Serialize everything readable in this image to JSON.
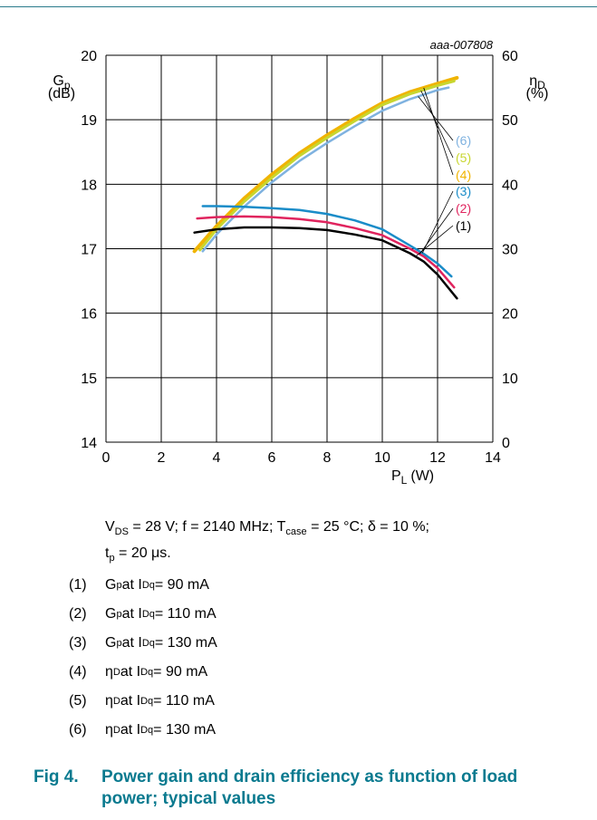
{
  "chart_data": {
    "type": "line",
    "id_label": "aaa-007808",
    "xlabel": "P",
    "xlabel_sub": "L",
    "xlabel_unit": "(W)",
    "ylabel_left": "G",
    "ylabel_left_sub": "p",
    "ylabel_left_unit": "(dB)",
    "ylabel_right": "η",
    "ylabel_right_sub": "D",
    "ylabel_right_unit": "(%)",
    "xlim": [
      0,
      14
    ],
    "ylim_left": [
      14,
      20
    ],
    "ylim_right": [
      0,
      60
    ],
    "x_ticks": [
      "0",
      "2",
      "4",
      "6",
      "8",
      "10",
      "12",
      "14"
    ],
    "y_left_ticks": [
      "14",
      "15",
      "16",
      "17",
      "18",
      "19",
      "20"
    ],
    "y_right_ticks": [
      "0",
      "10",
      "20",
      "30",
      "40",
      "50",
      "60"
    ],
    "grid": true,
    "series": [
      {
        "name": "(1)",
        "axis": "left",
        "color": "#000000",
        "x": [
          3.2,
          4,
          5,
          6,
          7,
          8,
          9,
          10,
          11,
          11.5,
          12,
          12.7
        ],
        "y": [
          17.25,
          17.3,
          17.33,
          17.33,
          17.32,
          17.29,
          17.22,
          17.13,
          16.93,
          16.8,
          16.6,
          16.23
        ]
      },
      {
        "name": "(2)",
        "axis": "left",
        "color": "#e0245e",
        "x": [
          3.3,
          4,
          5,
          6,
          7,
          8,
          9,
          10,
          11,
          11.5,
          12,
          12.6
        ],
        "y": [
          17.47,
          17.49,
          17.5,
          17.49,
          17.46,
          17.41,
          17.32,
          17.21,
          17.0,
          16.88,
          16.7,
          16.4
        ]
      },
      {
        "name": "(3)",
        "axis": "left",
        "color": "#1a8cc8",
        "x": [
          3.5,
          4,
          5,
          6,
          7,
          8,
          9,
          10,
          11,
          11.5,
          12,
          12.5
        ],
        "y": [
          17.66,
          17.66,
          17.65,
          17.63,
          17.6,
          17.54,
          17.44,
          17.3,
          17.05,
          16.92,
          16.77,
          16.57
        ]
      },
      {
        "name": "(4)",
        "axis": "right",
        "color": "#f0b400",
        "x": [
          3.2,
          4,
          5,
          6,
          7,
          8,
          9,
          10,
          11,
          12,
          12.7
        ],
        "y": [
          29.6,
          33.5,
          37.8,
          41.5,
          44.8,
          47.6,
          50.2,
          52.6,
          54.3,
          55.6,
          56.5
        ]
      },
      {
        "name": "(5)",
        "axis": "right",
        "color": "#c8d630",
        "x": [
          3.4,
          4,
          5,
          6,
          7,
          8,
          9,
          10,
          11,
          12,
          12.6
        ],
        "y": [
          29.8,
          33.0,
          37.3,
          41.0,
          44.4,
          47.2,
          49.8,
          52.3,
          54.0,
          55.3,
          56.0
        ]
      },
      {
        "name": "(6)",
        "axis": "right",
        "color": "#7fb2e0",
        "x": [
          3.5,
          4,
          5,
          6,
          7,
          8,
          9,
          10,
          11,
          12,
          12.4
        ],
        "y": [
          29.6,
          32.2,
          36.5,
          40.3,
          43.6,
          46.4,
          49.0,
          51.4,
          53.2,
          54.6,
          55.0
        ]
      }
    ]
  },
  "conditions": {
    "vds": "V",
    "vds_sub": "DS",
    "vds_val": " = 28 V; f = 2140 MHz; T",
    "tcase_sub": "case",
    "tcase_val": " = 25 °C; δ = 10 %;",
    "tp": "t",
    "tp_sub": "p",
    "tp_val": " = 20 μs."
  },
  "legend": [
    {
      "num": "(1)",
      "sym": "G",
      "sym_sub": "p",
      "mid": " at I",
      "mid_sub": "Dq",
      "val": " = 90 mA"
    },
    {
      "num": "(2)",
      "sym": "G",
      "sym_sub": "p",
      "mid": " at I",
      "mid_sub": "Dq",
      "val": " = 110 mA"
    },
    {
      "num": "(3)",
      "sym": "G",
      "sym_sub": "p",
      "mid": " at I",
      "mid_sub": "Dq",
      "val": " = 130 mA"
    },
    {
      "num": "(4)",
      "sym": "η",
      "sym_sub": "D",
      "mid": " at I",
      "mid_sub": "Dq",
      "val": " = 90 mA"
    },
    {
      "num": "(5)",
      "sym": "η",
      "sym_sub": "D",
      "mid": " at I",
      "mid_sub": "Dq",
      "val": " = 110 mA"
    },
    {
      "num": "(6)",
      "sym": "η",
      "sym_sub": "D",
      "mid": " at I",
      "mid_sub": "Dq",
      "val": " = 130 mA"
    }
  ],
  "caption": {
    "fignum": "Fig 4.",
    "text": "Power gain and drain efficiency as function of load power; typical values"
  }
}
